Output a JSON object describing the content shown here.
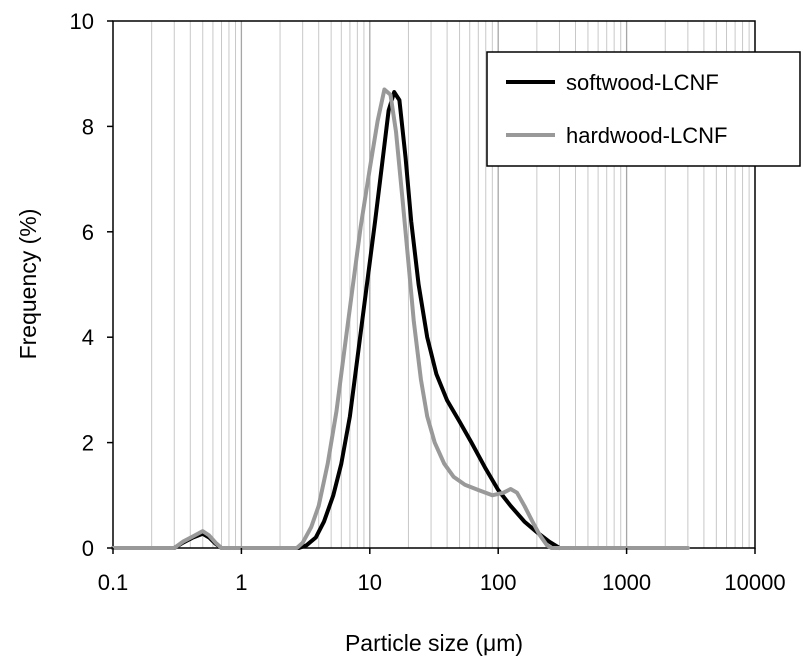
{
  "chart_data": {
    "type": "line",
    "title": "",
    "xlabel": "Particle size (μm)",
    "ylabel": "Frequency (%)",
    "x_scale": "log",
    "xlim": [
      0.1,
      10000
    ],
    "ylim": [
      0,
      10
    ],
    "x_ticks": [
      0.1,
      1,
      10,
      100,
      1000,
      10000
    ],
    "x_tick_labels": [
      "0.1",
      "1",
      "10",
      "100",
      "1000",
      "10000"
    ],
    "y_ticks": [
      0,
      2,
      4,
      6,
      8,
      10
    ],
    "y_tick_labels": [
      "0",
      "2",
      "4",
      "6",
      "8",
      "10"
    ],
    "grid": {
      "x_major": true,
      "x_minor": true,
      "y": false
    },
    "legend_position": "top-right",
    "series": [
      {
        "name": "softwood-LCNF",
        "color": "#000000",
        "points": [
          [
            0.1,
            0
          ],
          [
            0.3,
            0
          ],
          [
            0.35,
            0.1
          ],
          [
            0.42,
            0.2
          ],
          [
            0.5,
            0.27
          ],
          [
            0.56,
            0.2
          ],
          [
            0.63,
            0.08
          ],
          [
            0.7,
            0
          ],
          [
            2.8,
            0
          ],
          [
            3.2,
            0.05
          ],
          [
            3.8,
            0.2
          ],
          [
            4.4,
            0.5
          ],
          [
            5.2,
            1.0
          ],
          [
            6.0,
            1.6
          ],
          [
            7.0,
            2.5
          ],
          [
            8.0,
            3.6
          ],
          [
            9.5,
            5.0
          ],
          [
            11,
            6.2
          ],
          [
            12.5,
            7.3
          ],
          [
            14,
            8.3
          ],
          [
            15.5,
            8.65
          ],
          [
            17,
            8.5
          ],
          [
            19,
            7.4
          ],
          [
            21,
            6.2
          ],
          [
            24,
            5.0
          ],
          [
            28,
            4.0
          ],
          [
            33,
            3.3
          ],
          [
            40,
            2.8
          ],
          [
            50,
            2.4
          ],
          [
            62,
            2.0
          ],
          [
            80,
            1.5
          ],
          [
            100,
            1.1
          ],
          [
            125,
            0.8
          ],
          [
            160,
            0.5
          ],
          [
            200,
            0.3
          ],
          [
            250,
            0.12
          ],
          [
            300,
            0
          ]
        ]
      },
      {
        "name": "hardwood-LCNF",
        "color": "#999999",
        "points": [
          [
            0.1,
            0
          ],
          [
            0.3,
            0
          ],
          [
            0.35,
            0.12
          ],
          [
            0.42,
            0.22
          ],
          [
            0.5,
            0.32
          ],
          [
            0.56,
            0.24
          ],
          [
            0.63,
            0.1
          ],
          [
            0.7,
            0
          ],
          [
            2.7,
            0
          ],
          [
            3.0,
            0.1
          ],
          [
            3.5,
            0.4
          ],
          [
            4.0,
            0.8
          ],
          [
            4.7,
            1.6
          ],
          [
            5.5,
            2.6
          ],
          [
            6.3,
            3.7
          ],
          [
            7.3,
            4.9
          ],
          [
            8.5,
            6.1
          ],
          [
            10,
            7.2
          ],
          [
            11.5,
            8.1
          ],
          [
            13,
            8.7
          ],
          [
            14.5,
            8.6
          ],
          [
            16,
            7.9
          ],
          [
            18,
            6.6
          ],
          [
            20,
            5.4
          ],
          [
            22,
            4.3
          ],
          [
            25,
            3.2
          ],
          [
            28,
            2.5
          ],
          [
            32,
            2.0
          ],
          [
            38,
            1.6
          ],
          [
            45,
            1.35
          ],
          [
            55,
            1.2
          ],
          [
            70,
            1.1
          ],
          [
            90,
            1.0
          ],
          [
            110,
            1.05
          ],
          [
            125,
            1.12
          ],
          [
            140,
            1.05
          ],
          [
            160,
            0.8
          ],
          [
            185,
            0.5
          ],
          [
            210,
            0.25
          ],
          [
            240,
            0.05
          ],
          [
            260,
            0
          ],
          [
            3000,
            0
          ]
        ]
      }
    ]
  }
}
